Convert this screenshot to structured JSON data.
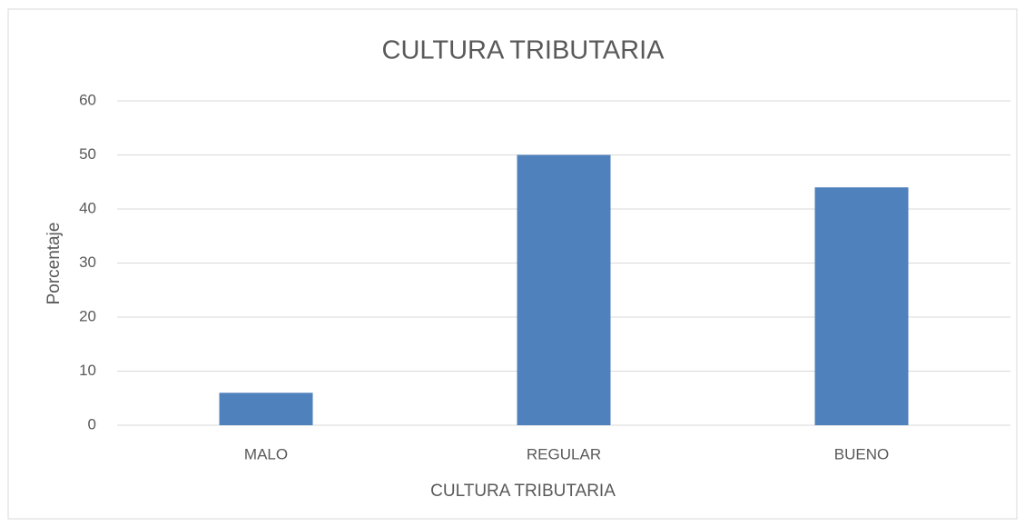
{
  "chart_data": {
    "type": "bar",
    "title": "CULTURA TRIBUTARIA",
    "x_label": "CULTURA TRIBUTARIA",
    "y_label": "Porcentaje",
    "categories": [
      "MALO",
      "REGULAR",
      "BUENO"
    ],
    "values": [
      6,
      50,
      44
    ],
    "color": "#4f81bd",
    "ylim": [
      0,
      60
    ],
    "yticks": [
      0,
      10,
      20,
      30,
      40,
      50,
      60
    ],
    "grid": true
  }
}
